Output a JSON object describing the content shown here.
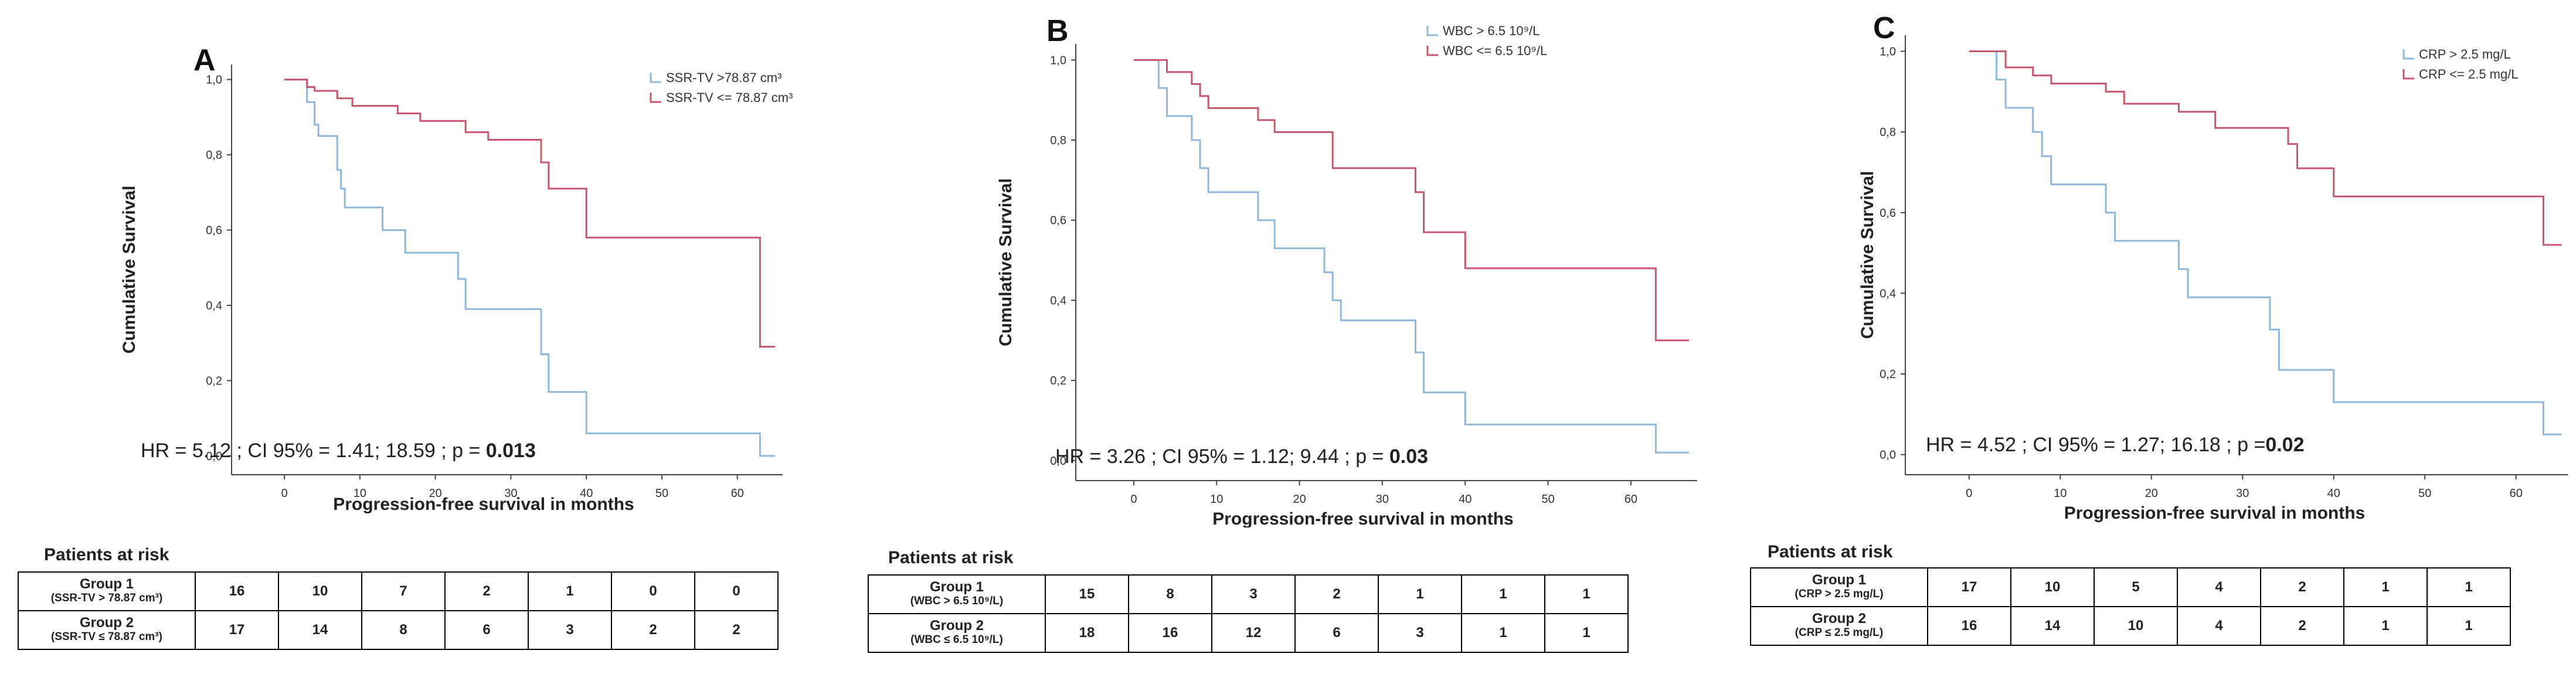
{
  "colors": {
    "group1": "#8fb8db",
    "group2": "#c8566f",
    "axis": "#444444"
  },
  "chart_data": [
    {
      "type": "line",
      "panel": "A",
      "xlabel": "Progression-free survival in months",
      "ylabel": "Cumulative Survival",
      "xlim": [
        -7,
        66
      ],
      "ylim": [
        -0.05,
        1.04
      ],
      "xticks": [
        "0",
        "10",
        "20",
        "30",
        "40",
        "50",
        "60"
      ],
      "yticks": [
        "0,0",
        "0,2",
        "0,4",
        "0,6",
        "0,8",
        "1,0"
      ],
      "ytick_values": [
        0,
        0.2,
        0.4,
        0.6,
        0.8,
        1.0
      ],
      "legend": [
        "SSR-TV >78.87 cm³",
        "SSR-TV <= 78.87 cm³"
      ],
      "hr": {
        "text": "HR = 5.12 ; CI 95% = 1.41; 18.59 ; p = ",
        "p": "0.013"
      },
      "series": [
        {
          "name": "SSR-TV >78.87 cm³",
          "steps": [
            [
              0,
              1.0
            ],
            [
              3,
              0.94
            ],
            [
              4,
              0.88
            ],
            [
              4.5,
              0.85
            ],
            [
              7,
              0.76
            ],
            [
              7.5,
              0.71
            ],
            [
              8,
              0.66
            ],
            [
              9,
              0.66
            ],
            [
              13,
              0.6
            ],
            [
              16,
              0.54
            ],
            [
              23,
              0.47
            ],
            [
              24,
              0.39
            ],
            [
              34,
              0.27
            ],
            [
              35,
              0.17
            ],
            [
              40,
              0.06
            ],
            [
              63,
              0.0
            ]
          ],
          "end": 65
        },
        {
          "name": "SSR-TV <= 78.87 cm³",
          "steps": [
            [
              0,
              1.0
            ],
            [
              3,
              0.98
            ],
            [
              4,
              0.97
            ],
            [
              7,
              0.95
            ],
            [
              9,
              0.93
            ],
            [
              15,
              0.91
            ],
            [
              18,
              0.89
            ],
            [
              24,
              0.86
            ],
            [
              27,
              0.84
            ],
            [
              34,
              0.78
            ],
            [
              35,
              0.71
            ],
            [
              40,
              0.58
            ],
            [
              63,
              0.29
            ]
          ],
          "end": 65
        }
      ],
      "risk": {
        "title": "Patients at risk",
        "groups": [
          {
            "name": "Group 1",
            "sub": "(SSR-TV > 78.87 cm³)",
            "values": [
              "16",
              "10",
              "7",
              "2",
              "1",
              "0",
              "0"
            ]
          },
          {
            "name": "Group 2",
            "sub": "(SSR-TV ≤ 78.87 cm³)",
            "values": [
              "17",
              "14",
              "8",
              "6",
              "3",
              "2",
              "2"
            ]
          }
        ]
      }
    },
    {
      "type": "line",
      "panel": "B",
      "xlabel": "Progression-free survival in months",
      "ylabel": "Cumulative Survival",
      "xlim": [
        -7,
        68
      ],
      "ylim": [
        -0.05,
        1.04
      ],
      "xticks": [
        "0",
        "10",
        "20",
        "30",
        "40",
        "50",
        "60"
      ],
      "yticks": [
        "0,0",
        "0,2",
        "0,4",
        "0,6",
        "0,8",
        "1,0"
      ],
      "ytick_values": [
        0,
        0.2,
        0.4,
        0.6,
        0.8,
        1.0
      ],
      "legend": [
        "WBC > 6.5 10⁹/L",
        "WBC <= 6.5 10⁹/L"
      ],
      "hr": {
        "text": "HR = 3.26 ; CI 95% = 1.12; 9.44 ; p = ",
        "p": "0.03"
      },
      "series": [
        {
          "name": "WBC > 6.5 10⁹/L",
          "steps": [
            [
              0,
              1.0
            ],
            [
              3,
              0.93
            ],
            [
              4,
              0.86
            ],
            [
              7,
              0.8
            ],
            [
              8,
              0.73
            ],
            [
              9,
              0.67
            ],
            [
              15,
              0.6
            ],
            [
              17,
              0.53
            ],
            [
              23,
              0.47
            ],
            [
              24,
              0.4
            ],
            [
              25,
              0.35
            ],
            [
              34,
              0.27
            ],
            [
              35,
              0.17
            ],
            [
              40,
              0.09
            ],
            [
              63,
              0.02
            ]
          ],
          "end": 67
        },
        {
          "name": "WBC <= 6.5 10⁹/L",
          "steps": [
            [
              0,
              1.0
            ],
            [
              4,
              0.97
            ],
            [
              7,
              0.94
            ],
            [
              8,
              0.91
            ],
            [
              9,
              0.88
            ],
            [
              15,
              0.85
            ],
            [
              17,
              0.82
            ],
            [
              24,
              0.73
            ],
            [
              34,
              0.67
            ],
            [
              35,
              0.57
            ],
            [
              40,
              0.48
            ],
            [
              63,
              0.3
            ]
          ],
          "end": 67
        }
      ],
      "risk": {
        "title": "Patients at risk",
        "groups": [
          {
            "name": "Group 1",
            "sub": "(WBC > 6.5 10⁹/L)",
            "values": [
              "15",
              "8",
              "3",
              "2",
              "1",
              "1",
              "1"
            ]
          },
          {
            "name": "Group 2",
            "sub": "(WBC ≤ 6.5 10⁹/L)",
            "values": [
              "18",
              "16",
              "12",
              "6",
              "3",
              "1",
              "1"
            ]
          }
        ]
      }
    },
    {
      "type": "line",
      "panel": "C",
      "xlabel": "Progression-free survival in months",
      "ylabel": "Cumulative Survival",
      "xlim": [
        -7,
        66
      ],
      "ylim": [
        -0.05,
        1.04
      ],
      "xticks": [
        "0",
        "10",
        "20",
        "30",
        "40",
        "50",
        "60"
      ],
      "yticks": [
        "0,0",
        "0,2",
        "0,4",
        "0,6",
        "0,8",
        "1,0"
      ],
      "ytick_values": [
        0,
        0.2,
        0.4,
        0.6,
        0.8,
        1.0
      ],
      "legend": [
        "CRP > 2.5 mg/L",
        "CRP <= 2.5 mg/L"
      ],
      "hr": {
        "text": "HR = 4.52  ; CI 95% = 1.27; 16.18 ; p =",
        "p": "0.02"
      },
      "series": [
        {
          "name": "CRP > 2.5 mg/L",
          "steps": [
            [
              0,
              1.0
            ],
            [
              3,
              0.93
            ],
            [
              4,
              0.86
            ],
            [
              7,
              0.8
            ],
            [
              8,
              0.74
            ],
            [
              9,
              0.67
            ],
            [
              15,
              0.6
            ],
            [
              16,
              0.53
            ],
            [
              23,
              0.46
            ],
            [
              24,
              0.39
            ],
            [
              33,
              0.31
            ],
            [
              34,
              0.21
            ],
            [
              40,
              0.13
            ],
            [
              63,
              0.05
            ]
          ],
          "end": 65
        },
        {
          "name": "CRP <= 2.5 mg/L",
          "steps": [
            [
              0,
              1.0
            ],
            [
              4,
              0.96
            ],
            [
              7,
              0.94
            ],
            [
              9,
              0.92
            ],
            [
              15,
              0.9
            ],
            [
              17,
              0.87
            ],
            [
              23,
              0.85
            ],
            [
              27,
              0.81
            ],
            [
              35,
              0.77
            ],
            [
              36,
              0.71
            ],
            [
              40,
              0.64
            ],
            [
              63,
              0.52
            ]
          ],
          "end": 65
        }
      ],
      "risk": {
        "title": "Patients at risk",
        "groups": [
          {
            "name": "Group 1",
            "sub": "(CRP > 2.5 mg/L)",
            "values": [
              "17",
              "10",
              "5",
              "4",
              "2",
              "1",
              "1"
            ]
          },
          {
            "name": "Group 2",
            "sub": "(CRP ≤ 2.5 mg/L)",
            "values": [
              "16",
              "14",
              "10",
              "4",
              "2",
              "1",
              "1"
            ]
          }
        ]
      }
    }
  ]
}
